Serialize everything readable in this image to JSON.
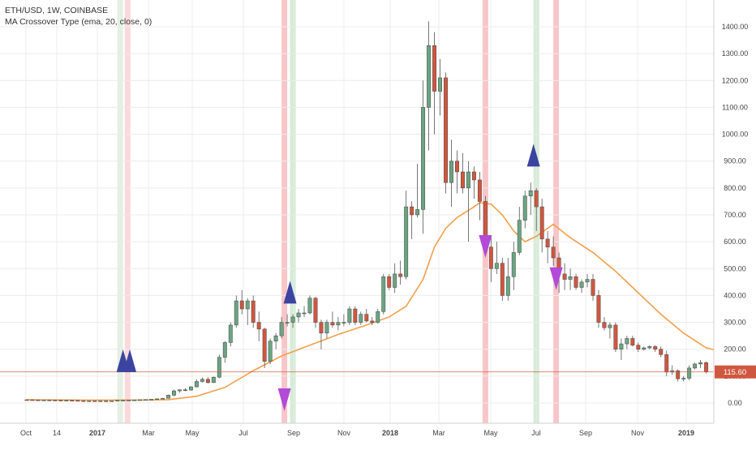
{
  "header": {
    "symbol_line": "ETH/USD, 1W, COINBASE",
    "indicator_line": "MA Crossover Type (ema, 20, close, 0)"
  },
  "chart_data": {
    "type": "candlestick",
    "title": "ETH/USD, 1W, COINBASE",
    "y_ticks": [
      0,
      100,
      200,
      300,
      400,
      500,
      600,
      700,
      800,
      900,
      1000,
      1100,
      1200,
      1300,
      1400
    ],
    "y_tick_labels": [
      "0.00",
      "100.00",
      "200.00",
      "300.00",
      "400.00",
      "500.00",
      "600.00",
      "700.00",
      "800.00",
      "900.00",
      "1000.00",
      "1100.00",
      "1200.00",
      "1300.00",
      "1400.00"
    ],
    "ylim": [
      -70,
      1480
    ],
    "x_ticks": [
      {
        "label": "Oct",
        "week": 0,
        "bold": false
      },
      {
        "label": "14",
        "week": 2.2,
        "bold": false
      },
      {
        "label": "2017",
        "week": 5,
        "bold": true
      },
      {
        "label": "Mar",
        "week": 8.7,
        "bold": false
      },
      {
        "label": "May",
        "week": 11.3,
        "bold": false
      },
      {
        "label": "Jul",
        "week": 13.9,
        "bold": false
      },
      {
        "label": "Sep",
        "week": 16.4,
        "bold": false
      },
      {
        "label": "Nov",
        "week": 19.1,
        "bold": false
      },
      {
        "label": "2018",
        "week": 21.7,
        "bold": true
      },
      {
        "label": "Mar",
        "week": 24.4,
        "bold": false
      },
      {
        "label": "May",
        "week": 27.1,
        "bold": false
      },
      {
        "label": "Jul",
        "week": 29.7,
        "bold": false
      },
      {
        "label": "Sep",
        "week": 32.4,
        "bold": false
      },
      {
        "label": "Nov",
        "week": 35.1,
        "bold": false
      },
      {
        "label": "2019",
        "week": 37.7,
        "bold": true
      }
    ],
    "candles_note": "weekly OHLC; index = weeks since chart start",
    "candles": [
      [
        12.1,
        12.3,
        11.8,
        12.0
      ],
      [
        12.0,
        12.2,
        11.3,
        11.5
      ],
      [
        11.5,
        11.8,
        11.0,
        11.2
      ],
      [
        11.2,
        11.6,
        10.8,
        11.3
      ],
      [
        11.3,
        11.4,
        10.5,
        10.7
      ],
      [
        10.7,
        11.0,
        10.2,
        10.4
      ],
      [
        10.4,
        10.6,
        9.5,
        9.7
      ],
      [
        9.7,
        10.1,
        9.3,
        9.8
      ],
      [
        9.8,
        10.0,
        9.3,
        9.4
      ],
      [
        9.4,
        9.8,
        8.4,
        8.6
      ],
      [
        8.6,
        8.9,
        7.8,
        8.0
      ],
      [
        8.0,
        8.4,
        7.6,
        8.2
      ],
      [
        8.2,
        8.4,
        7.7,
        7.8
      ],
      [
        7.8,
        8.2,
        7.5,
        8.0
      ],
      [
        8.0,
        8.3,
        7.7,
        7.9
      ],
      [
        7.9,
        8.2,
        7.6,
        8.1
      ],
      [
        8.1,
        9.9,
        7.9,
        9.8
      ],
      [
        9.8,
        10.7,
        9.5,
        10.4
      ],
      [
        10.4,
        11.4,
        9.8,
        10.9
      ],
      [
        10.9,
        11.8,
        10.5,
        11.5
      ],
      [
        11.5,
        12.7,
        11.0,
        12.2
      ],
      [
        12.2,
        13.1,
        11.6,
        12.8
      ],
      [
        12.8,
        14.2,
        12.5,
        13.7
      ],
      [
        13.7,
        16.0,
        13.2,
        15.5
      ],
      [
        15.5,
        18.7,
        14.9,
        17.5
      ],
      [
        17.5,
        31.0,
        17.1,
        29.0
      ],
      [
        29.0,
        50.0,
        25.0,
        45.0
      ],
      [
        45.0,
        51.0,
        38.0,
        49.0
      ],
      [
        49.0,
        55.0,
        44.0,
        48.0
      ],
      [
        48.0,
        62.0,
        46.0,
        60.0
      ],
      [
        60.0,
        88.0,
        58.0,
        80.0
      ],
      [
        80.0,
        95.0,
        76.0,
        88.0
      ],
      [
        88.0,
        96.0,
        72.0,
        76.0
      ],
      [
        76.0,
        98.0,
        74.0,
        96.0
      ],
      [
        96.0,
        180.0,
        92.0,
        170.0
      ],
      [
        170.0,
        230.0,
        150.0,
        225.0
      ],
      [
        225.0,
        300.0,
        210.0,
        290.0
      ],
      [
        290.0,
        400.0,
        280.0,
        380.0
      ],
      [
        380.0,
        420.0,
        330.0,
        350.0
      ],
      [
        350.0,
        390.0,
        290.0,
        380.0
      ],
      [
        380.0,
        400.0,
        280.0,
        300.0
      ],
      [
        300.0,
        340.0,
        230.0,
        275.0
      ],
      [
        275.0,
        280.0,
        130.0,
        155.0
      ],
      [
        155.0,
        240.0,
        145.0,
        230.0
      ],
      [
        230.0,
        260.0,
        200.0,
        250.0
      ],
      [
        250.0,
        320.0,
        240.0,
        300.0
      ],
      [
        300.0,
        330.0,
        285.0,
        300.0
      ],
      [
        300.0,
        330.0,
        280.0,
        320.0
      ],
      [
        320.0,
        350.0,
        300.0,
        335.0
      ],
      [
        335.0,
        360.0,
        320.0,
        335.0
      ],
      [
        335.0,
        400.0,
        330.0,
        390.0
      ],
      [
        390.0,
        395.0,
        280.0,
        300.0
      ],
      [
        300.0,
        310.0,
        200.0,
        260.0
      ],
      [
        260.0,
        310.0,
        240.0,
        300.0
      ],
      [
        300.0,
        340.0,
        280.0,
        290.0
      ],
      [
        290.0,
        320.0,
        270.0,
        300.0
      ],
      [
        300.0,
        330.0,
        285.0,
        300.0
      ],
      [
        300.0,
        360.0,
        290.0,
        350.0
      ],
      [
        350.0,
        360.0,
        290.0,
        300.0
      ],
      [
        300.0,
        340.0,
        290.0,
        330.0
      ],
      [
        330.0,
        350.0,
        300.0,
        305.0
      ],
      [
        305.0,
        320.0,
        290.0,
        300.0
      ],
      [
        300.0,
        350.0,
        295.0,
        340.0
      ],
      [
        340.0,
        480.0,
        330.0,
        470.0
      ],
      [
        470.0,
        480.0,
        420.0,
        430.0
      ],
      [
        430.0,
        520.0,
        410.0,
        480.0
      ],
      [
        480.0,
        530.0,
        440.0,
        470.0
      ],
      [
        470.0,
        790.0,
        460.0,
        730.0
      ],
      [
        730.0,
        750.0,
        610.0,
        700.0
      ],
      [
        700.0,
        890.0,
        690.0,
        720.0
      ],
      [
        720.0,
        1200.0,
        630.0,
        1100.0
      ],
      [
        1100.0,
        1420.0,
        940.0,
        1330.0
      ],
      [
        1330.0,
        1380.0,
        1000.0,
        1160.0
      ],
      [
        1160.0,
        1280.0,
        1070.0,
        1210.0
      ],
      [
        1210.0,
        1230.0,
        780.0,
        820.0
      ],
      [
        820.0,
        980.0,
        730.0,
        900.0
      ],
      [
        900.0,
        940.0,
        780.0,
        860.0
      ],
      [
        860.0,
        930.0,
        780.0,
        800.0
      ],
      [
        800.0,
        900.0,
        600.0,
        860.0
      ],
      [
        860.0,
        880.0,
        760.0,
        830.0
      ],
      [
        830.0,
        860.0,
        680.0,
        750.0
      ],
      [
        750.0,
        770.0,
        560.0,
        580.0
      ],
      [
        580.0,
        620.0,
        450.0,
        500.0
      ],
      [
        500.0,
        600.0,
        480.0,
        520.0
      ],
      [
        520.0,
        540.0,
        380.0,
        400.0
      ],
      [
        400.0,
        540.0,
        380.0,
        470.0
      ],
      [
        470.0,
        600.0,
        420.0,
        560.0
      ],
      [
        560.0,
        730.0,
        550.0,
        680.0
      ],
      [
        680.0,
        790.0,
        650.0,
        770.0
      ],
      [
        770.0,
        820.0,
        700.0,
        790.0
      ],
      [
        790.0,
        800.0,
        640.0,
        730.0
      ],
      [
        730.0,
        760.0,
        560.0,
        610.0
      ],
      [
        610.0,
        640.0,
        520.0,
        580.0
      ],
      [
        580.0,
        620.0,
        510.0,
        540.0
      ],
      [
        540.0,
        560.0,
        410.0,
        480.0
      ],
      [
        480.0,
        520.0,
        420.0,
        460.0
      ],
      [
        460.0,
        500.0,
        420.0,
        470.0
      ],
      [
        470.0,
        480.0,
        420.0,
        430.0
      ],
      [
        430.0,
        460.0,
        410.0,
        450.0
      ],
      [
        450.0,
        480.0,
        430.0,
        460.0
      ],
      [
        460.0,
        480.0,
        380.0,
        400.0
      ],
      [
        400.0,
        420.0,
        280.0,
        300.0
      ],
      [
        300.0,
        320.0,
        270.0,
        280.0
      ],
      [
        280.0,
        300.0,
        240.0,
        290.0
      ],
      [
        290.0,
        300.0,
        190.0,
        200.0
      ],
      [
        200.0,
        240.0,
        160.0,
        220.0
      ],
      [
        220.0,
        250.0,
        200.0,
        240.0
      ],
      [
        240.0,
        250.0,
        210.0,
        215.0
      ],
      [
        215.0,
        225.0,
        190.0,
        200.0
      ],
      [
        200.0,
        210.0,
        195.0,
        205.0
      ],
      [
        205.0,
        215.0,
        200.0,
        210.0
      ],
      [
        210.0,
        215.0,
        190.0,
        200.0
      ],
      [
        200.0,
        210.0,
        170.0,
        180.0
      ],
      [
        180.0,
        195.0,
        100.0,
        115.0
      ],
      [
        115.0,
        140.0,
        105.0,
        120.0
      ],
      [
        120.0,
        125.0,
        80.0,
        90.0
      ],
      [
        90.0,
        100.0,
        80.0,
        92.0
      ],
      [
        92.0,
        140.0,
        85.0,
        130.0
      ],
      [
        130.0,
        150.0,
        125.0,
        145.0
      ],
      [
        145.0,
        160.0,
        130.0,
        150.0
      ],
      [
        150.0,
        155.0,
        110.0,
        115.6
      ]
    ],
    "ema_series": {
      "name": "ema 20",
      "color": "#f2a04c",
      "points": [
        [
          0,
          12.0
        ],
        [
          10,
          10.6
        ],
        [
          20,
          10.7
        ],
        [
          25,
          12.3
        ],
        [
          30,
          25.0
        ],
        [
          35,
          58.0
        ],
        [
          40,
          120.0
        ],
        [
          45,
          175.0
        ],
        [
          50,
          215.0
        ],
        [
          55,
          255.0
        ],
        [
          60,
          290.0
        ],
        [
          64,
          320.0
        ],
        [
          67,
          360.0
        ],
        [
          70,
          460.0
        ],
        [
          72,
          580.0
        ],
        [
          74,
          650.0
        ],
        [
          76,
          690.0
        ],
        [
          79,
          730.0
        ],
        [
          80,
          745.0
        ],
        [
          82,
          740.0
        ],
        [
          84,
          700.0
        ],
        [
          86,
          640.0
        ],
        [
          88,
          600.0
        ],
        [
          90,
          620.0
        ],
        [
          92,
          650.0
        ],
        [
          93,
          665.0
        ],
        [
          96,
          615.0
        ],
        [
          100,
          560.0
        ],
        [
          104,
          490.0
        ],
        [
          108,
          410.0
        ],
        [
          112,
          330.0
        ],
        [
          116,
          260.0
        ],
        [
          120,
          205.0
        ],
        [
          122,
          195.0
        ]
      ]
    },
    "bands": [
      {
        "week": 16.5,
        "color": "#e3f0e3"
      },
      {
        "week": 17.8,
        "color": "#f9d9da"
      },
      {
        "week": 45.5,
        "color": "#f7c6c8"
      },
      {
        "week": 47.0,
        "color": "#d4ecd5"
      },
      {
        "week": 81.0,
        "color": "#f7c6c8"
      },
      {
        "week": 90.0,
        "color": "#d4ecd5"
      },
      {
        "week": 93.5,
        "color": "#f7c6c8"
      }
    ],
    "signals": [
      {
        "type": "buy",
        "week": 17.0,
        "price": 115
      },
      {
        "type": "buy",
        "week": 18.2,
        "price": 115
      },
      {
        "type": "buy",
        "week": 46.5,
        "price": 370
      },
      {
        "type": "sell",
        "week": 45.5,
        "price": -30
      },
      {
        "type": "sell",
        "week": 81.0,
        "price": 540
      },
      {
        "type": "buy",
        "week": 89.5,
        "price": 880
      },
      {
        "type": "sell",
        "week": 93.5,
        "price": 420
      }
    ],
    "current_price": {
      "value": 115.6,
      "label": "115.60"
    },
    "colors": {
      "up": "#6ba583",
      "down": "#d0573f",
      "buy": "#3b44a0",
      "sell": "#b34ad8",
      "price_line": "#d0573f",
      "grid": "#ececec"
    }
  }
}
